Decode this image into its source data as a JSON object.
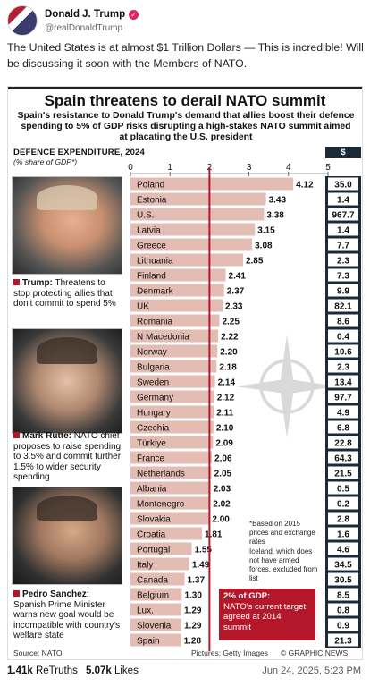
{
  "post": {
    "display_name": "Donald J. Trump",
    "handle": "@realDonaldTrump",
    "text": "The United States is at almost $1 Trillion Dollars — This is incredible! Will be discussing it soon with the Members of NATO.",
    "verified_glyph": "✓",
    "retruths_count": "1.41k",
    "retruths_label": "ReTruths",
    "likes_count": "5.07k",
    "likes_label": "Likes",
    "timestamp": "Jun 24, 2025, 5:23 PM"
  },
  "infographic": {
    "title": "Spain threatens to derail NATO summit",
    "subtitle": "Spain's resistance to Donald Trump's demand that allies boost their defence spending to 5% of GDP risks disrupting a high-stakes NATO summit aimed at placating the U.S. president",
    "axis_head": "DEFENCE EXPENDITURE, 2024",
    "axis_sub": "(% share of GDP*)",
    "billions_head": "$ billions",
    "captions": [
      {
        "name": "Trump:",
        "text": "Threatens to stop protecting allies that don't commit to spend 5%"
      },
      {
        "name": "Mark Rutte:",
        "text": "NATO chief proposes to raise spending to 3.5% and commit further 1.5% to wider security spending"
      },
      {
        "name": "Pedro Sanchez:",
        "text": "Spanish Prime Minister warns new goal would be incompatible with country's welfare state"
      }
    ],
    "note_1": "*Based on 2015 prices and exchange rates",
    "note_2": "Iceland, which does not have armed forces, excluded from list",
    "target_title": "2% of GDP:",
    "target_text": "NATO's current target agreed at 2014 summit",
    "source": "Source: NATO",
    "pictures": "Pictures: Getty Images",
    "graphic_news": "© GRAPHIC NEWS",
    "colors": {
      "bar": "#e3bdb3",
      "accent": "#b5172a",
      "billions_bg": "#1c2a38"
    }
  },
  "chart_data": {
    "type": "bar",
    "orientation": "horizontal",
    "title": "Spain threatens to derail NATO summit",
    "xlabel": "DEFENCE EXPENDITURE, 2024 (% share of GDP*)",
    "xlim": [
      0,
      5
    ],
    "x_ticks": [
      "0",
      "1",
      "2",
      "3",
      "4",
      "5"
    ],
    "reference_line": 2,
    "categories": [
      "Poland",
      "Estonia",
      "U.S.",
      "Latvia",
      "Greece",
      "Lithuania",
      "Finland",
      "Denmark",
      "UK",
      "Romania",
      "N Macedonia",
      "Norway",
      "Bulgaria",
      "Sweden",
      "Germany",
      "Hungary",
      "Czechia",
      "Türkiye",
      "France",
      "Netherlands",
      "Albania",
      "Montenegro",
      "Slovakia",
      "Croatia",
      "Portugal",
      "Italy",
      "Canada",
      "Belgium",
      "Lux.",
      "Slovenia",
      "Spain"
    ],
    "values": [
      4.12,
      3.43,
      3.38,
      3.15,
      3.08,
      2.85,
      2.41,
      2.37,
      2.33,
      2.25,
      2.22,
      2.2,
      2.18,
      2.14,
      2.12,
      2.11,
      2.1,
      2.09,
      2.06,
      2.05,
      2.03,
      2.02,
      2.0,
      1.81,
      1.55,
      1.49,
      1.37,
      1.3,
      1.29,
      1.29,
      1.28
    ],
    "value_labels": [
      "4.12",
      "3.43",
      "3.38",
      "3.15",
      "3.08",
      "2.85",
      "2.41",
      "2.37",
      "2.33",
      "2.25",
      "2.22",
      "2.20",
      "2.18",
      "2.14",
      "2.12",
      "2.11",
      "2.10",
      "2.09",
      "2.06",
      "2.05",
      "2.03",
      "2.02",
      "2.00",
      "1.81",
      "1.55",
      "1.49",
      "1.37",
      "1.30",
      "1.29",
      "1.29",
      "1.28"
    ],
    "billions": [
      "35.0",
      "1.4",
      "967.7",
      "1.4",
      "7.7",
      "2.3",
      "7.3",
      "9.9",
      "82.1",
      "8.6",
      "0.4",
      "10.6",
      "2.3",
      "13.4",
      "97.7",
      "4.9",
      "6.8",
      "22.8",
      "64.3",
      "21.5",
      "0.5",
      "0.2",
      "2.8",
      "1.6",
      "4.6",
      "34.5",
      "30.5",
      "8.5",
      "0.8",
      "0.9",
      "21.3"
    ]
  }
}
